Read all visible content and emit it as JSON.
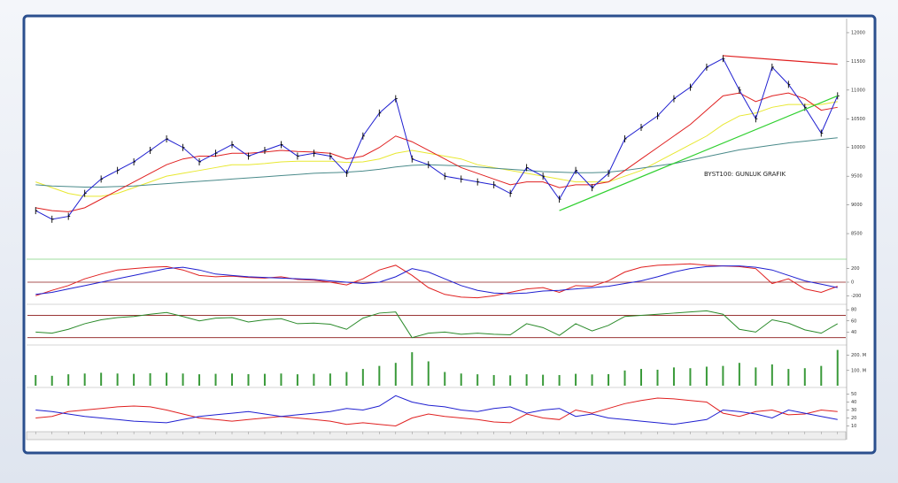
{
  "chart_data": [
    {
      "type": "line",
      "annotation": "BYST100: GUNLUK GRAFIK",
      "categories": [
        null,
        null,
        null,
        null,
        null,
        null,
        null,
        null,
        null,
        null,
        null,
        null,
        null,
        null,
        null,
        null,
        null,
        null,
        null,
        null,
        null,
        null,
        null,
        null,
        null,
        null,
        null,
        null,
        null,
        null,
        null,
        null,
        null,
        null,
        null,
        null,
        null,
        null,
        null,
        null,
        null,
        null,
        null,
        null,
        null,
        null,
        null,
        null,
        null,
        null
      ],
      "ylim": [
        8100,
        12200
      ],
      "yticks": [
        8500,
        9000,
        9500,
        10000,
        10500,
        11000,
        11500,
        12000
      ],
      "series": [
        {
          "color": "#e8e830",
          "values": [
            9400,
            9300,
            9200,
            9150,
            9150,
            9200,
            9300,
            9400,
            9500,
            9550,
            9600,
            9650,
            9700,
            9700,
            9720,
            9750,
            9760,
            9760,
            9760,
            9740,
            9750,
            9800,
            9900,
            9950,
            9900,
            9850,
            9800,
            9700,
            9650,
            9600,
            9550,
            9500,
            9450,
            9400,
            9400,
            9400,
            9500,
            9600,
            9750,
            9900,
            10050,
            10200,
            10400,
            10550,
            10600,
            10700,
            10750,
            10750,
            10750,
            10800
          ]
        },
        {
          "color": "#4a8a8a",
          "values": [
            9350,
            9330,
            9320,
            9310,
            9310,
            9320,
            9330,
            9350,
            9370,
            9390,
            9410,
            9430,
            9450,
            9470,
            9490,
            9510,
            9530,
            9550,
            9560,
            9570,
            9590,
            9620,
            9660,
            9690,
            9700,
            9690,
            9680,
            9660,
            9640,
            9620,
            9600,
            9580,
            9570,
            9560,
            9560,
            9570,
            9600,
            9640,
            9680,
            9720,
            9780,
            9840,
            9900,
            9960,
            10000,
            10040,
            10080,
            10110,
            10140,
            10170
          ]
        },
        {
          "color": "#e02020",
          "values": [
            8950,
            8900,
            8880,
            8950,
            9100,
            9250,
            9400,
            9550,
            9700,
            9800,
            9850,
            9850,
            9900,
            9900,
            9920,
            9950,
            9930,
            9920,
            9900,
            9800,
            9850,
            10000,
            10200,
            10100,
            9950,
            9800,
            9650,
            9550,
            9450,
            9350,
            9400,
            9400,
            9300,
            9350,
            9350,
            9400,
            9600,
            9800,
            10000,
            10200,
            10400,
            10650,
            10900,
            10950,
            10800,
            10900,
            10950,
            10850,
            10650,
            10700
          ]
        },
        {
          "color": "#1f1fd0",
          "bar_color": "#000000",
          "values": [
            8900,
            8750,
            8800,
            9200,
            9450,
            9600,
            9750,
            9950,
            10150,
            10000,
            9750,
            9900,
            10050,
            9850,
            9950,
            10050,
            9850,
            9900,
            9850,
            9550,
            10200,
            10600,
            10850,
            9800,
            9700,
            9500,
            9450,
            9400,
            9350,
            9200,
            9650,
            9500,
            9100,
            9600,
            9300,
            9550,
            10150,
            10350,
            10550,
            10850,
            11050,
            11400,
            11550,
            11000,
            10500,
            11400,
            11100,
            10700,
            10250,
            10900
          ]
        }
      ],
      "trendlines": [
        {
          "color": "#e02020",
          "points": [
            [
              42,
              11600
            ],
            [
              49,
              11450
            ]
          ]
        },
        {
          "color": "#30d030",
          "points": [
            [
              32,
              8900
            ],
            [
              49,
              10900
            ]
          ]
        }
      ]
    },
    {
      "type": "line",
      "ylim": [
        -300,
        300
      ],
      "yticks": [
        -200,
        0,
        200
      ],
      "hlines": [
        0
      ],
      "hline_color": "#8b1a1a",
      "series": [
        {
          "color": "#e02020",
          "values": [
            -200,
            -120,
            -50,
            50,
            120,
            180,
            200,
            220,
            230,
            180,
            100,
            80,
            90,
            70,
            60,
            80,
            40,
            30,
            0,
            -40,
            50,
            180,
            250,
            100,
            -80,
            -180,
            -220,
            -230,
            -200,
            -150,
            -100,
            -80,
            -150,
            -50,
            -60,
            20,
            150,
            220,
            250,
            260,
            270,
            250,
            240,
            230,
            200,
            -20,
            50,
            -100,
            -150,
            -60
          ]
        },
        {
          "color": "#1f1fd0",
          "values": [
            -180,
            -150,
            -100,
            -50,
            0,
            50,
            100,
            150,
            200,
            220,
            180,
            120,
            100,
            80,
            70,
            60,
            50,
            40,
            20,
            0,
            -20,
            0,
            80,
            200,
            150,
            50,
            -50,
            -120,
            -160,
            -170,
            -160,
            -130,
            -120,
            -100,
            -80,
            -60,
            -20,
            20,
            80,
            150,
            200,
            230,
            240,
            240,
            220,
            180,
            100,
            20,
            -30,
            -80
          ]
        }
      ]
    },
    {
      "type": "line",
      "ylim": [
        20,
        85
      ],
      "yticks": [
        40,
        60,
        80
      ],
      "hlines": [
        70,
        30
      ],
      "hline_color": "#8b1a1a",
      "series": [
        {
          "color": "#2a8a2a",
          "values": [
            40,
            38,
            45,
            55,
            62,
            66,
            68,
            72,
            75,
            68,
            60,
            65,
            66,
            58,
            62,
            64,
            55,
            56,
            54,
            45,
            65,
            74,
            76,
            30,
            38,
            40,
            36,
            38,
            36,
            35,
            55,
            48,
            34,
            55,
            42,
            52,
            68,
            70,
            72,
            74,
            76,
            78,
            72,
            45,
            40,
            62,
            56,
            44,
            38,
            55
          ]
        }
      ]
    },
    {
      "type": "bar",
      "ylim": [
        0,
        250
      ],
      "yticks": [
        {
          "value": 100,
          "label": "100. M"
        },
        {
          "value": 200,
          "label": "200. M"
        }
      ],
      "series": [
        {
          "color": "#3a9a3a",
          "values": [
            70,
            65,
            75,
            80,
            85,
            80,
            78,
            82,
            85,
            80,
            75,
            78,
            80,
            76,
            78,
            80,
            75,
            78,
            80,
            90,
            110,
            130,
            150,
            220,
            160,
            90,
            80,
            75,
            70,
            68,
            75,
            72,
            70,
            78,
            74,
            76,
            100,
            110,
            105,
            120,
            115,
            125,
            130,
            150,
            120,
            140,
            110,
            115,
            130,
            235
          ]
        }
      ]
    },
    {
      "type": "line",
      "ylim": [
        5,
        55
      ],
      "yticks": [
        10,
        20,
        30,
        40,
        50
      ],
      "series": [
        {
          "color": "#e02020",
          "values": [
            20,
            22,
            28,
            30,
            32,
            34,
            35,
            34,
            30,
            25,
            20,
            18,
            16,
            18,
            20,
            22,
            20,
            18,
            16,
            12,
            14,
            12,
            10,
            20,
            25,
            22,
            20,
            18,
            15,
            14,
            25,
            20,
            18,
            30,
            26,
            32,
            38,
            42,
            45,
            44,
            42,
            40,
            26,
            22,
            28,
            30,
            24,
            25,
            30,
            28
          ]
        },
        {
          "color": "#1f1fd0",
          "values": [
            30,
            28,
            25,
            22,
            20,
            18,
            16,
            15,
            14,
            18,
            22,
            24,
            26,
            28,
            25,
            22,
            24,
            26,
            28,
            32,
            30,
            35,
            48,
            40,
            36,
            34,
            30,
            28,
            32,
            34,
            26,
            30,
            32,
            22,
            25,
            20,
            18,
            16,
            14,
            12,
            15,
            18,
            30,
            28,
            25,
            20,
            30,
            26,
            22,
            18
          ]
        }
      ]
    }
  ]
}
